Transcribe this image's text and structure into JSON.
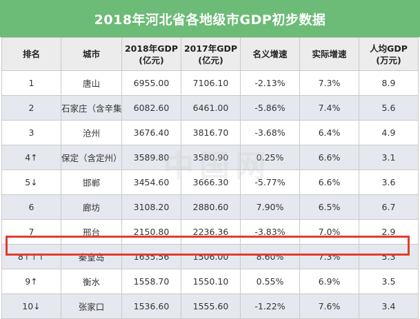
{
  "title": "2018年河北省各地级市GDP初步数据",
  "watermark": "中国网",
  "colors": {
    "title_bg": "#6cbb76",
    "highlight": "#e23b2c",
    "row_alt": "#e6e8ef"
  },
  "headers": [
    [
      "排名"
    ],
    [
      "城市"
    ],
    [
      "2018年GDP",
      "(亿元)"
    ],
    [
      "2017年GDP",
      "(亿元)"
    ],
    [
      "名义增速"
    ],
    [
      "实际增速"
    ],
    [
      "人均GDP",
      "(万元)"
    ]
  ],
  "rows": [
    [
      "1",
      "唐山",
      "6955.00",
      "7106.10",
      "-2.13%",
      "7.3%",
      "8.9"
    ],
    [
      "2",
      "石家庄（含辛集）",
      "6082.60",
      "6461.00",
      "-5.86%",
      "7.4%",
      "5.6"
    ],
    [
      "3",
      "沧州",
      "3676.40",
      "3816.70",
      "-3.68%",
      "6.4%",
      "4.9"
    ],
    [
      "4↑",
      "保定（含定州）",
      "3589.80",
      "3580.90",
      "0.25%",
      "6.6%",
      "3.1"
    ],
    [
      "5↓",
      "邯郸",
      "3454.60",
      "3666.30",
      "-5.77%",
      "6.6%",
      "3.6"
    ],
    [
      "6",
      "廊坊",
      "3108.20",
      "2880.60",
      "7.90%",
      "6.5%",
      "6.7"
    ],
    [
      "7",
      "邢台",
      "2150.80",
      "2236.36",
      "-3.83%",
      "7.0%",
      "2.9"
    ],
    [
      "8↑↑↑",
      "秦皇岛",
      "1635.56",
      "1506.00",
      "8.60%",
      "7.3%",
      "5.3"
    ],
    [
      "9↑",
      "衡水",
      "1558.70",
      "1550.10",
      "0.55%",
      "6.9%",
      "3.5"
    ],
    [
      "10↓",
      "张家口",
      "1536.60",
      "1555.60",
      "-1.22%",
      "7.6%",
      "3.4"
    ]
  ]
}
